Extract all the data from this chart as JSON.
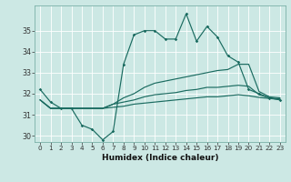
{
  "xlabel": "Humidex (Indice chaleur)",
  "bg_color": "#cce8e4",
  "line_color": "#1a6b60",
  "x": [
    0,
    1,
    2,
    3,
    4,
    5,
    6,
    7,
    8,
    9,
    10,
    11,
    12,
    13,
    14,
    15,
    16,
    17,
    18,
    19,
    20,
    21,
    22,
    23
  ],
  "line1": [
    32.2,
    31.6,
    31.3,
    31.3,
    30.5,
    30.3,
    29.8,
    30.2,
    33.4,
    34.8,
    35.0,
    35.0,
    34.6,
    34.6,
    35.8,
    34.5,
    35.2,
    34.7,
    33.8,
    33.5,
    32.2,
    32.0,
    31.8,
    31.7
  ],
  "line2": [
    31.7,
    31.3,
    31.3,
    31.3,
    31.3,
    31.3,
    31.3,
    31.5,
    31.8,
    32.0,
    32.3,
    32.5,
    32.6,
    32.7,
    32.8,
    32.9,
    33.0,
    33.1,
    33.15,
    33.4,
    33.4,
    32.1,
    31.85,
    31.8
  ],
  "line3": [
    31.7,
    31.3,
    31.3,
    31.3,
    31.3,
    31.3,
    31.3,
    31.5,
    31.6,
    31.7,
    31.85,
    31.95,
    32.0,
    32.05,
    32.15,
    32.2,
    32.3,
    32.3,
    32.35,
    32.4,
    32.35,
    31.95,
    31.8,
    31.75
  ],
  "line4": [
    31.7,
    31.3,
    31.3,
    31.3,
    31.3,
    31.3,
    31.3,
    31.35,
    31.4,
    31.5,
    31.55,
    31.6,
    31.65,
    31.7,
    31.75,
    31.8,
    31.85,
    31.85,
    31.9,
    31.95,
    31.9,
    31.82,
    31.77,
    31.72
  ],
  "ylim": [
    29.7,
    36.2
  ],
  "yticks": [
    30,
    31,
    32,
    33,
    34,
    35
  ],
  "xticks": [
    0,
    1,
    2,
    3,
    4,
    5,
    6,
    7,
    8,
    9,
    10,
    11,
    12,
    13,
    14,
    15,
    16,
    17,
    18,
    19,
    20,
    21,
    22,
    23
  ]
}
